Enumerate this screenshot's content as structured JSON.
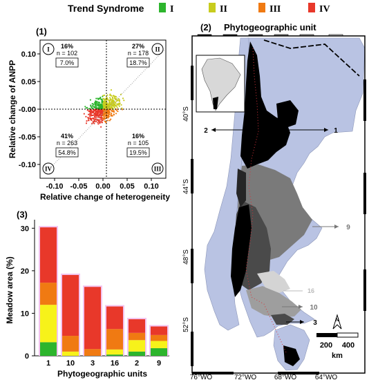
{
  "legend": {
    "title": "Trend Syndrome",
    "items": [
      {
        "label": "I",
        "color": "#2db52d"
      },
      {
        "label": "II",
        "color": "#c8cc1e"
      },
      {
        "label": "III",
        "color": "#f07a12"
      },
      {
        "label": "IV",
        "color": "#e8382a"
      }
    ]
  },
  "chart_data": [
    {
      "type": "scatter",
      "panel": "(1)",
      "xlabel": "Relative change of heterogeneity",
      "ylabel": "Relative change of ANPP",
      "xlim": [
        -0.13,
        0.13
      ],
      "ylim": [
        -0.125,
        0.125
      ],
      "xticks": [
        "-0.10",
        "-0.05",
        "0.00",
        "0.05",
        "0.10"
      ],
      "yticks": [
        "0.10",
        "0.05",
        "-0.00",
        "-0.05",
        "-0.10"
      ],
      "quadrants": [
        {
          "roman": "I",
          "pct": "16%",
          "n": "n = 102",
          "area": "7.0%"
        },
        {
          "roman": "II",
          "pct": "27%",
          "n": "n = 178",
          "area": "18.7%"
        },
        {
          "roman": "III",
          "pct": "16%",
          "n": "n = 105",
          "area": "19.5%"
        },
        {
          "roman": "IV",
          "pct": "41%",
          "n": "n = 263",
          "area": "54.8%"
        }
      ]
    },
    {
      "type": "bar",
      "panel": "(3)",
      "stacked": true,
      "xlabel": "Phytogeographic units",
      "ylabel": "Meadow area (%)",
      "ylim": [
        0,
        32
      ],
      "yticks": [
        "0",
        "10",
        "20",
        "30"
      ],
      "categories": [
        "1",
        "10",
        "3",
        "16",
        "2",
        "9"
      ],
      "series": [
        {
          "name": "I",
          "color": "#2db52d",
          "values": [
            3.2,
            0,
            0,
            0.3,
            1.0,
            1.8
          ]
        },
        {
          "name": "II",
          "color": "#f7f21a",
          "values": [
            8.8,
            1.0,
            0,
            1.2,
            2.7,
            1.7
          ]
        },
        {
          "name": "III",
          "color": "#f07a12",
          "values": [
            5.2,
            3.7,
            1.6,
            4.8,
            1.7,
            1.4
          ]
        },
        {
          "name": "IV",
          "color": "#e8382a",
          "values": [
            13.0,
            14.3,
            14.6,
            5.3,
            3.2,
            2.0
          ]
        }
      ]
    }
  ],
  "map": {
    "panel": "(2)",
    "title": "Phytogeographic unit",
    "units": [
      {
        "label": "1",
        "color": "#000000"
      },
      {
        "label": "2",
        "color": "#262626"
      },
      {
        "label": "3",
        "color": "#4a4a4a"
      },
      {
        "label": "9",
        "color": "#7a7a7a"
      },
      {
        "label": "10",
        "color": "#9e9e9e"
      },
      {
        "label": "16",
        "color": "#d4d4d4"
      }
    ],
    "lat_labels": [
      "40°S",
      "44°S",
      "48°S",
      "52°S"
    ],
    "lon_labels": [
      "76°WO",
      "72°WO",
      "68°WO",
      "64°WO"
    ],
    "callouts": [
      "2",
      "1",
      "9",
      "16",
      "10",
      "3"
    ],
    "scale_labels": [
      "200",
      "400"
    ],
    "scale_unit": "km",
    "north": "N"
  }
}
